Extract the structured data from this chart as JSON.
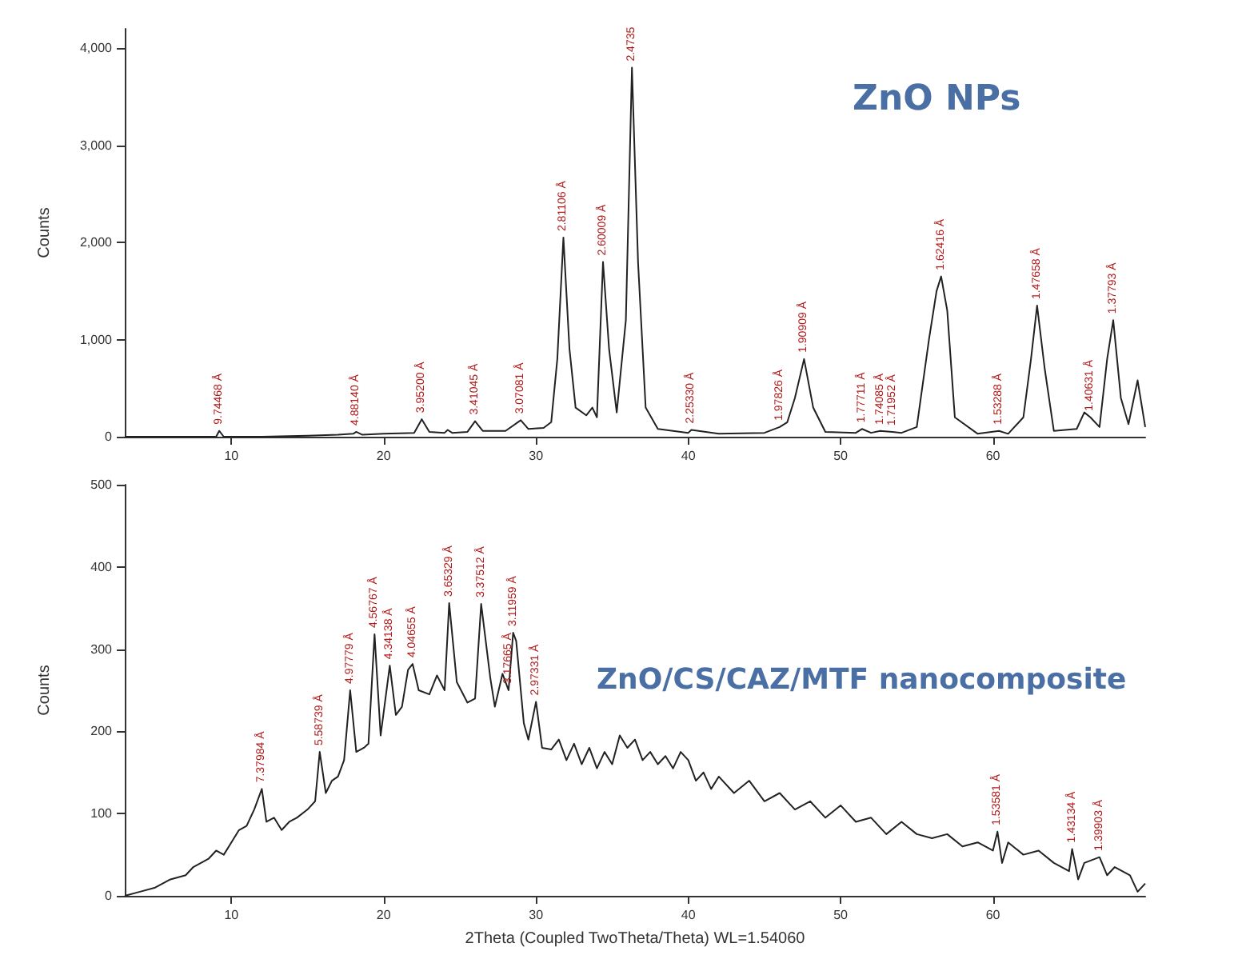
{
  "chart_data": [
    {
      "type": "line",
      "title": "ZnO NPs",
      "ylabel": "Counts",
      "xlim": [
        3,
        70
      ],
      "ylim": [
        0,
        4200
      ],
      "xticks": [
        10,
        20,
        30,
        40,
        50,
        60
      ],
      "yticks": [
        0,
        {
          "value": 1000,
          "label": "1,000"
        },
        {
          "value": 2000,
          "label": "2,000"
        },
        {
          "value": 3000,
          "label": "3,000"
        },
        {
          "value": 4000,
          "label": "4,000"
        }
      ],
      "grid": false,
      "marker": "none",
      "line_style": "solid",
      "series": [
        {
          "color": "#222222",
          "x": [
            3,
            5,
            8,
            9,
            9.2,
            9.5,
            12,
            15,
            17,
            18,
            18.2,
            18.6,
            20,
            22,
            22.5,
            23,
            24,
            24.2,
            24.5,
            25.5,
            26,
            26.5,
            28,
            29,
            29.5,
            30.5,
            31,
            31.4,
            31.8,
            32.2,
            32.6,
            33.3,
            33.7,
            34,
            34.4,
            34.8,
            35.3,
            35.9,
            36.3,
            36.7,
            37.2,
            38,
            40,
            40.2,
            42,
            45,
            46,
            46.5,
            47,
            47.6,
            48.2,
            49,
            51,
            51.4,
            52,
            52.6,
            53.4,
            54,
            55,
            55.8,
            56.3,
            56.6,
            57,
            57.5,
            59,
            60.4,
            61,
            62,
            62.5,
            62.9,
            63.4,
            64,
            65.5,
            66,
            66.4,
            67,
            67.5,
            67.9,
            68.4,
            68.9,
            69.5,
            70
          ],
          "values": [
            0,
            0,
            0,
            0,
            60,
            0,
            0,
            10,
            20,
            30,
            50,
            20,
            30,
            40,
            180,
            50,
            40,
            70,
            40,
            50,
            160,
            60,
            60,
            170,
            80,
            90,
            150,
            800,
            2050,
            900,
            300,
            220,
            300,
            200,
            1800,
            900,
            250,
            1200,
            3800,
            1800,
            300,
            80,
            40,
            70,
            30,
            40,
            100,
            150,
            400,
            800,
            300,
            50,
            40,
            80,
            40,
            60,
            50,
            40,
            100,
            1000,
            1500,
            1650,
            1300,
            200,
            30,
            60,
            30,
            200,
            800,
            1350,
            700,
            60,
            80,
            250,
            200,
            100,
            800,
            1200,
            400,
            130,
            580,
            100
          ]
        }
      ],
      "annotations": [
        {
          "text": "9.74468 Å",
          "x": 9.2,
          "y": 60
        },
        {
          "text": "4.88140 Å",
          "x": 18.2,
          "y": 50
        },
        {
          "text": "3.95200 Å",
          "x": 22.5,
          "y": 180
        },
        {
          "text": "3.41045 Å",
          "x": 26,
          "y": 160
        },
        {
          "text": "3.07081 Å",
          "x": 29,
          "y": 170
        },
        {
          "text": "2.81106 Å",
          "x": 31.8,
          "y": 2050
        },
        {
          "text": "2.60009 Å",
          "x": 34.4,
          "y": 1800
        },
        {
          "text": "2.4735",
          "x": 36.3,
          "y": 3800
        },
        {
          "text": "2.25330 Å",
          "x": 40.2,
          "y": 70
        },
        {
          "text": "1.97826 Å",
          "x": 46,
          "y": 100
        },
        {
          "text": "1.90909 Å",
          "x": 47.6,
          "y": 800
        },
        {
          "text": "1.77711 Å",
          "x": 51.4,
          "y": 80
        },
        {
          "text": "1.74085 Å",
          "x": 52.6,
          "y": 60
        },
        {
          "text": "1.71952 Å",
          "x": 53.4,
          "y": 50
        },
        {
          "text": "1.62416 Å",
          "x": 56.6,
          "y": 1650
        },
        {
          "text": "1.53288 Å",
          "x": 60.4,
          "y": 60
        },
        {
          "text": "1.47658 Å",
          "x": 62.9,
          "y": 1350
        },
        {
          "text": "1.40631 Å",
          "x": 66.4,
          "y": 200
        },
        {
          "text": "1.37793 Å",
          "x": 67.9,
          "y": 1200
        }
      ]
    },
    {
      "type": "line",
      "title": "ZnO/CS/CAZ/MTF nanocomposite",
      "ylabel": "Counts",
      "xlabel": "2Theta (Coupled TwoTheta/Theta) WL=1.54060",
      "xlim": [
        3,
        70
      ],
      "ylim": [
        0,
        500
      ],
      "xticks": [
        10,
        20,
        30,
        40,
        50,
        60
      ],
      "yticks": [
        0,
        100,
        200,
        300,
        400,
        500
      ],
      "grid": false,
      "marker": "none",
      "line_style": "solid",
      "series": [
        {
          "color": "#222222",
          "x": [
            3,
            4,
            5,
            6,
            7,
            7.5,
            8,
            8.5,
            9,
            9.5,
            10,
            10.5,
            11,
            11.5,
            12,
            12.3,
            12.8,
            13.3,
            13.8,
            14.3,
            15,
            15.5,
            15.8,
            16.2,
            16.6,
            17,
            17.4,
            17.8,
            18.2,
            18.7,
            19,
            19.4,
            19.8,
            20.4,
            20.8,
            21.2,
            21.6,
            21.9,
            22.3,
            23,
            23.5,
            24,
            24.3,
            24.8,
            25.5,
            26,
            26.4,
            27,
            27.3,
            27.8,
            28.2,
            28.5,
            28.7,
            29.2,
            29.5,
            30,
            30.4,
            31,
            31.5,
            32,
            32.5,
            33,
            33.5,
            34,
            34.5,
            35,
            35.5,
            36,
            36.5,
            37,
            37.5,
            38,
            38.5,
            39,
            39.5,
            40,
            40.5,
            41,
            41.5,
            42,
            43,
            44,
            45,
            46,
            47,
            48,
            49,
            50,
            51,
            52,
            53,
            54,
            55,
            56,
            57,
            58,
            59,
            60,
            60.3,
            60.6,
            61,
            62,
            63,
            64,
            65,
            65.2,
            65.6,
            66,
            67,
            67.5,
            68,
            69,
            69.5,
            70
          ],
          "values": [
            0,
            5,
            10,
            20,
            25,
            35,
            40,
            45,
            55,
            50,
            65,
            80,
            85,
            105,
            130,
            90,
            95,
            80,
            90,
            95,
            105,
            115,
            175,
            125,
            140,
            145,
            165,
            250,
            175,
            180,
            185,
            318,
            195,
            280,
            220,
            230,
            275,
            282,
            250,
            245,
            268,
            250,
            356,
            260,
            235,
            240,
            355,
            265,
            230,
            270,
            250,
            320,
            310,
            210,
            190,
            236,
            180,
            178,
            190,
            165,
            185,
            160,
            180,
            155,
            175,
            160,
            195,
            180,
            190,
            165,
            175,
            160,
            170,
            155,
            175,
            165,
            140,
            150,
            130,
            145,
            125,
            140,
            115,
            125,
            105,
            115,
            95,
            110,
            90,
            95,
            75,
            90,
            75,
            70,
            75,
            60,
            65,
            55,
            78,
            40,
            65,
            50,
            55,
            40,
            30,
            57,
            20,
            40,
            47,
            25,
            35,
            25,
            5,
            15
          ]
        }
      ],
      "annotations": [
        {
          "text": "7.37984 Å",
          "x": 12,
          "y": 130
        },
        {
          "text": "5.58739 Å",
          "x": 15.8,
          "y": 175
        },
        {
          "text": "4.97779 Å",
          "x": 17.8,
          "y": 250
        },
        {
          "text": "4.56767 Å",
          "x": 19.4,
          "y": 318
        },
        {
          "text": "4.34138 Å",
          "x": 20.4,
          "y": 280
        },
        {
          "text": "4.04655 Å",
          "x": 21.9,
          "y": 282
        },
        {
          "text": "3.65329 Å",
          "x": 24.3,
          "y": 356
        },
        {
          "text": "3.37512 Å",
          "x": 26.4,
          "y": 355
        },
        {
          "text": "3.17665 Å",
          "x": 28.2,
          "y": 250
        },
        {
          "text": "3.11959 Å",
          "x": 28.5,
          "y": 320
        },
        {
          "text": "2.97331 Å",
          "x": 30,
          "y": 236
        },
        {
          "text": "1.53581 Å",
          "x": 60.3,
          "y": 78
        },
        {
          "text": "1.43134 Å",
          "x": 65.2,
          "y": 57
        },
        {
          "text": "1.39903 Å",
          "x": 67,
          "y": 47
        }
      ]
    }
  ]
}
